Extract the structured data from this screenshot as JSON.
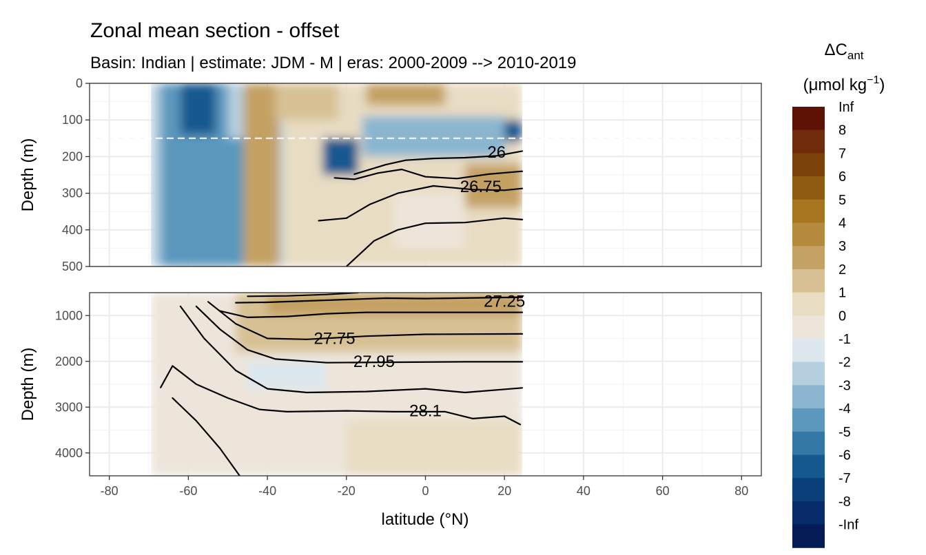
{
  "chart_data": {
    "type": "heatmap",
    "title": "Zonal mean section - offset",
    "subtitle": "Basin: Indian | estimate: JDM - M | eras: 2000-2009 --> 2010-2019",
    "xlabel": "latitude (°N)",
    "ylabel": "Depth (m)",
    "xlim": [
      -85,
      85
    ],
    "x_ticks": [
      "-80",
      "-60",
      "-40",
      "-20",
      "0",
      "20",
      "40",
      "60",
      "80"
    ],
    "x_tick_values": [
      -80,
      -60,
      -40,
      -20,
      0,
      20,
      40,
      60,
      80
    ],
    "data_lat_range": [
      -69.5,
      24.5
    ],
    "grid": true,
    "panels": [
      {
        "name": "upper",
        "ylim": [
          500,
          0
        ],
        "y_ticks": [
          "0",
          "100",
          "200",
          "300",
          "400",
          "500"
        ],
        "y_tick_values": [
          0,
          100,
          200,
          300,
          400,
          500
        ],
        "reference_line": {
          "depth": 150,
          "style": "dashed",
          "color": "#ffffff"
        }
      },
      {
        "name": "lower",
        "ylim": [
          4500,
          500
        ],
        "y_ticks": [
          "1000",
          "2000",
          "3000",
          "4000"
        ],
        "y_tick_values": [
          1000,
          2000,
          3000,
          4000
        ]
      }
    ],
    "isopycnals": [
      {
        "panel": "upper",
        "label": "26",
        "label_at": [
          18,
          188
        ],
        "points": [
          [
            -18,
            248
          ],
          [
            -10,
            222
          ],
          [
            -5,
            210
          ],
          [
            2,
            205
          ],
          [
            10,
            203
          ],
          [
            18,
            198
          ],
          [
            24.5,
            185
          ]
        ]
      },
      {
        "panel": "upper",
        "label": "26.75",
        "label_at": [
          14,
          282
        ],
        "points": [
          [
            -23,
            258
          ],
          [
            -18,
            262
          ],
          [
            -12,
            245
          ],
          [
            -6,
            235
          ],
          [
            0,
            255
          ],
          [
            8,
            260
          ],
          [
            16,
            248
          ],
          [
            24.5,
            240
          ]
        ]
      },
      {
        "panel": "upper",
        "label": "",
        "label_at": null,
        "points": [
          [
            -27,
            375
          ],
          [
            -20,
            368
          ],
          [
            -14,
            330
          ],
          [
            -7,
            300
          ],
          [
            2,
            280
          ],
          [
            12,
            290
          ],
          [
            20,
            292
          ],
          [
            24.5,
            287
          ]
        ]
      },
      {
        "panel": "upper",
        "label": "",
        "label_at": null,
        "points": [
          [
            -20,
            500
          ],
          [
            -13,
            430
          ],
          [
            -7,
            400
          ],
          [
            0,
            382
          ],
          [
            10,
            380
          ],
          [
            20,
            368
          ],
          [
            24.5,
            372
          ]
        ]
      },
      {
        "panel": "lower",
        "label": "27.25",
        "label_at": [
          20,
          690
        ],
        "points": [
          [
            -45,
            580
          ],
          [
            -35,
            570
          ],
          [
            -25,
            540
          ],
          [
            -17,
            500
          ]
        ]
      },
      {
        "panel": "lower",
        "label": "",
        "label_at": null,
        "points": [
          [
            -48,
            720
          ],
          [
            -40,
            710
          ],
          [
            -30,
            680
          ],
          [
            -20,
            650
          ],
          [
            -10,
            620
          ],
          [
            0,
            630
          ],
          [
            24.5,
            600
          ]
        ]
      },
      {
        "panel": "lower",
        "label": "",
        "label_at": null,
        "points": [
          [
            -52,
            900
          ],
          [
            -45,
            1040
          ],
          [
            -35,
            1020
          ],
          [
            -25,
            960
          ],
          [
            -15,
            930
          ],
          [
            0,
            930
          ],
          [
            24.5,
            930
          ]
        ]
      },
      {
        "panel": "lower",
        "label": "27.75",
        "label_at": [
          -23,
          1500
        ],
        "points": [
          [
            -55,
            700
          ],
          [
            -48,
            1180
          ],
          [
            -40,
            1500
          ],
          [
            -30,
            1520
          ],
          [
            -15,
            1450
          ],
          [
            0,
            1410
          ],
          [
            24.5,
            1400
          ]
        ]
      },
      {
        "panel": "lower",
        "label": "27.95",
        "label_at": [
          -13,
          2000
        ],
        "points": [
          [
            -58,
            800
          ],
          [
            -52,
            1300
          ],
          [
            -45,
            1750
          ],
          [
            -38,
            1950
          ],
          [
            -25,
            2030
          ],
          [
            -10,
            2020
          ],
          [
            10,
            2010
          ],
          [
            24.5,
            2010
          ]
        ]
      },
      {
        "panel": "lower",
        "label": "28.1",
        "label_at": [
          0,
          3080
        ],
        "points": [
          [
            -62,
            800
          ],
          [
            -56,
            1500
          ],
          [
            -48,
            2200
          ],
          [
            -40,
            2600
          ],
          [
            -30,
            2680
          ],
          [
            -15,
            2660
          ],
          [
            0,
            2600
          ],
          [
            10,
            2680
          ],
          [
            24.5,
            2580
          ]
        ]
      },
      {
        "panel": "lower",
        "label": "",
        "label_at": null,
        "points": [
          [
            -67,
            2570
          ],
          [
            -64,
            2100
          ],
          [
            -58,
            2500
          ],
          [
            -50,
            2800
          ],
          [
            -42,
            3050
          ],
          [
            -35,
            3100
          ],
          [
            -20,
            3080
          ],
          [
            -8,
            3100
          ],
          [
            5,
            3100
          ],
          [
            12,
            3250
          ],
          [
            20,
            3200
          ],
          [
            24,
            3380
          ]
        ]
      },
      {
        "panel": "lower",
        "label": "",
        "label_at": null,
        "points": [
          [
            -64,
            2800
          ],
          [
            -58,
            3300
          ],
          [
            -52,
            3900
          ],
          [
            -47,
            4500
          ]
        ]
      }
    ],
    "field_patches": [
      {
        "panel": "upper",
        "lat": [
          -69.5,
          -36
        ],
        "depth": [
          0,
          500
        ],
        "value": -2
      },
      {
        "panel": "upper",
        "lat": [
          -36,
          24.5
        ],
        "depth": [
          0,
          500
        ],
        "value": 0.5
      },
      {
        "panel": "upper",
        "lat": [
          -67,
          -50
        ],
        "depth": [
          0,
          500
        ],
        "value": -4
      },
      {
        "panel": "upper",
        "lat": [
          -62,
          -53
        ],
        "depth": [
          0,
          140
        ],
        "value": -6.5
      },
      {
        "panel": "upper",
        "lat": [
          -56,
          -44
        ],
        "depth": [
          150,
          500
        ],
        "value": -4
      },
      {
        "panel": "upper",
        "lat": [
          -46,
          -37
        ],
        "depth": [
          0,
          500
        ],
        "value": 3
      },
      {
        "panel": "upper",
        "lat": [
          -38,
          -22
        ],
        "depth": [
          0,
          100
        ],
        "value": 1.5
      },
      {
        "panel": "upper",
        "lat": [
          -26,
          -17
        ],
        "depth": [
          150,
          250
        ],
        "value": -6.5
      },
      {
        "panel": "upper",
        "lat": [
          -16,
          20
        ],
        "depth": [
          90,
          200
        ],
        "value": -3
      },
      {
        "panel": "upper",
        "lat": [
          20,
          24.5
        ],
        "depth": [
          100,
          160
        ],
        "value": -6
      },
      {
        "panel": "upper",
        "lat": [
          -15,
          5
        ],
        "depth": [
          0,
          60
        ],
        "value": 2.5
      },
      {
        "panel": "upper",
        "lat": [
          10,
          24.5
        ],
        "depth": [
          220,
          340
        ],
        "value": 2.5
      },
      {
        "panel": "upper",
        "lat": [
          -8,
          10
        ],
        "depth": [
          300,
          450
        ],
        "value": -0.5
      },
      {
        "panel": "lower",
        "lat": [
          -69.5,
          24.5
        ],
        "depth": [
          500,
          4500
        ],
        "value": -0.5
      },
      {
        "panel": "lower",
        "lat": [
          -48,
          24.5
        ],
        "depth": [
          500,
          1800
        ],
        "value": 1.5
      },
      {
        "panel": "lower",
        "lat": [
          -40,
          24.5
        ],
        "depth": [
          500,
          1000
        ],
        "value": 2.5
      },
      {
        "panel": "lower",
        "lat": [
          -45,
          -25
        ],
        "depth": [
          2000,
          2600
        ],
        "value": -1.5
      },
      {
        "panel": "lower",
        "lat": [
          -20,
          24.5
        ],
        "depth": [
          3300,
          4500
        ],
        "value": 0.5
      }
    ],
    "colorbar": {
      "title_main": "ΔC",
      "title_sub": "ant",
      "unit_main": "(μmol kg",
      "unit_sup": "−1",
      "unit_close": ")",
      "labels": [
        "Inf",
        "8",
        "7",
        "6",
        "5",
        "4",
        "3",
        "2",
        "1",
        "0",
        "-1",
        "-2",
        "-3",
        "-4",
        "-5",
        "-6",
        "-7",
        "-8",
        "-Inf"
      ],
      "colors": [
        "#5e1205",
        "#6f2b0a",
        "#7c420b",
        "#8f5b10",
        "#a5751f",
        "#b58a3c",
        "#c4a164",
        "#d7c194",
        "#e8dcc3",
        "#ede5da",
        "#dce7ee",
        "#b5cfe0",
        "#8ab6d0",
        "#5c98bd",
        "#3378a7",
        "#15598f",
        "#0b3f7a",
        "#082c69",
        "#051b55"
      ]
    }
  }
}
